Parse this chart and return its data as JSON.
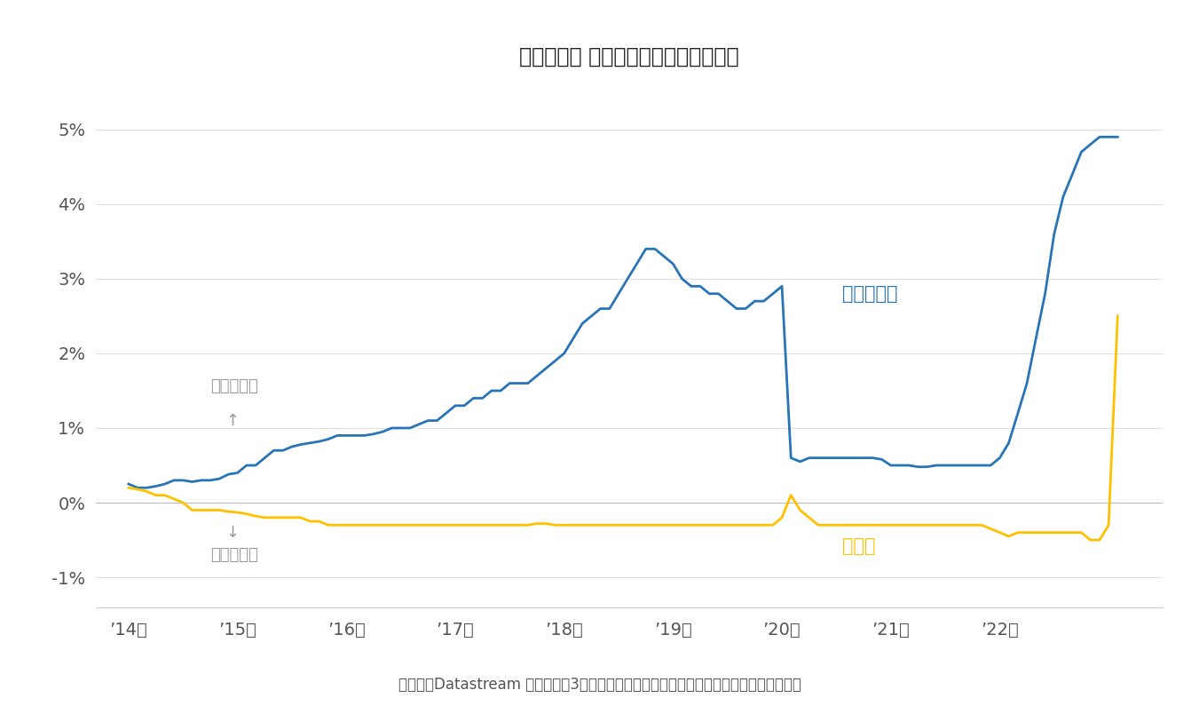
{
  "title_raw": "【図表５】 為替ヘッジのコストの推移",
  "footnote_raw": "（資料）Datastream より作成。3カ月先の為替先物より算出。なお、年率換算している。",
  "xlabel_ticks": [
    "’14年",
    "’15年",
    "’16年",
    "’17年",
    "’18年",
    "’19年",
    "’20年",
    "’21年",
    "’22年"
  ],
  "yticks": [
    -0.01,
    0.0,
    0.01,
    0.02,
    0.03,
    0.04,
    0.05
  ],
  "ytick_labels": [
    "-1%",
    "0%",
    "1%",
    "2%",
    "3%",
    "4%",
    "5%"
  ],
  "ylim": [
    -0.014,
    0.056
  ],
  "xlim_start": 2013.7,
  "xlim_end": 2023.5,
  "line_blue_color": "#2874B8",
  "line_gold_color": "#FFC000",
  "annotation_color": "#999999",
  "text_color": "#555555",
  "background_color": "#FFFFFF",
  "label_dollar": "（米）ドル",
  "label_euro": "ユーロ",
  "annotation_large": "コスト：大",
  "annotation_arrow_up": "↑",
  "annotation_small": "コスト：小",
  "annotation_arrow_down": "↓",
  "usd_x": [
    2014.0,
    2014.083,
    2014.167,
    2014.25,
    2014.333,
    2014.417,
    2014.5,
    2014.583,
    2014.667,
    2014.75,
    2014.833,
    2014.917,
    2015.0,
    2015.083,
    2015.167,
    2015.25,
    2015.333,
    2015.417,
    2015.5,
    2015.583,
    2015.667,
    2015.75,
    2015.833,
    2015.917,
    2016.0,
    2016.083,
    2016.167,
    2016.25,
    2016.333,
    2016.417,
    2016.5,
    2016.583,
    2016.667,
    2016.75,
    2016.833,
    2016.917,
    2017.0,
    2017.083,
    2017.167,
    2017.25,
    2017.333,
    2017.417,
    2017.5,
    2017.583,
    2017.667,
    2017.75,
    2017.833,
    2017.917,
    2018.0,
    2018.083,
    2018.167,
    2018.25,
    2018.333,
    2018.417,
    2018.5,
    2018.583,
    2018.667,
    2018.75,
    2018.833,
    2018.917,
    2019.0,
    2019.083,
    2019.167,
    2019.25,
    2019.333,
    2019.417,
    2019.5,
    2019.583,
    2019.667,
    2019.75,
    2019.833,
    2019.917,
    2020.0,
    2020.083,
    2020.167,
    2020.25,
    2020.333,
    2020.417,
    2020.5,
    2020.583,
    2020.667,
    2020.75,
    2020.833,
    2020.917,
    2021.0,
    2021.083,
    2021.167,
    2021.25,
    2021.333,
    2021.417,
    2021.5,
    2021.583,
    2021.667,
    2021.75,
    2021.833,
    2021.917,
    2022.0,
    2022.083,
    2022.167,
    2022.25,
    2022.333,
    2022.417,
    2022.5,
    2022.583,
    2022.667,
    2022.75,
    2022.833,
    2022.917,
    2023.0,
    2023.083
  ],
  "usd_y": [
    0.0025,
    0.002,
    0.002,
    0.0022,
    0.0025,
    0.003,
    0.003,
    0.0028,
    0.003,
    0.003,
    0.0032,
    0.0038,
    0.004,
    0.005,
    0.005,
    0.006,
    0.007,
    0.007,
    0.0075,
    0.0078,
    0.008,
    0.0082,
    0.0085,
    0.009,
    0.009,
    0.009,
    0.009,
    0.0092,
    0.0095,
    0.01,
    0.01,
    0.01,
    0.0105,
    0.011,
    0.011,
    0.012,
    0.013,
    0.013,
    0.014,
    0.014,
    0.015,
    0.015,
    0.016,
    0.016,
    0.016,
    0.017,
    0.018,
    0.019,
    0.02,
    0.022,
    0.024,
    0.025,
    0.026,
    0.026,
    0.028,
    0.03,
    0.032,
    0.034,
    0.034,
    0.033,
    0.032,
    0.03,
    0.029,
    0.029,
    0.028,
    0.028,
    0.027,
    0.026,
    0.026,
    0.027,
    0.027,
    0.028,
    0.029,
    0.006,
    0.0055,
    0.006,
    0.006,
    0.006,
    0.006,
    0.006,
    0.006,
    0.006,
    0.006,
    0.0058,
    0.005,
    0.005,
    0.005,
    0.0048,
    0.0048,
    0.005,
    0.005,
    0.005,
    0.005,
    0.005,
    0.005,
    0.005,
    0.006,
    0.008,
    0.012,
    0.016,
    0.022,
    0.028,
    0.036,
    0.041,
    0.044,
    0.047,
    0.048,
    0.049,
    0.049,
    0.049
  ],
  "eur_x": [
    2014.0,
    2014.083,
    2014.167,
    2014.25,
    2014.333,
    2014.417,
    2014.5,
    2014.583,
    2014.667,
    2014.75,
    2014.833,
    2014.917,
    2015.0,
    2015.083,
    2015.167,
    2015.25,
    2015.333,
    2015.417,
    2015.5,
    2015.583,
    2015.667,
    2015.75,
    2015.833,
    2015.917,
    2016.0,
    2016.083,
    2016.167,
    2016.25,
    2016.333,
    2016.417,
    2016.5,
    2016.583,
    2016.667,
    2016.75,
    2016.833,
    2016.917,
    2017.0,
    2017.083,
    2017.167,
    2017.25,
    2017.333,
    2017.417,
    2017.5,
    2017.583,
    2017.667,
    2017.75,
    2017.833,
    2017.917,
    2018.0,
    2018.083,
    2018.167,
    2018.25,
    2018.333,
    2018.417,
    2018.5,
    2018.583,
    2018.667,
    2018.75,
    2018.833,
    2018.917,
    2019.0,
    2019.083,
    2019.167,
    2019.25,
    2019.333,
    2019.417,
    2019.5,
    2019.583,
    2019.667,
    2019.75,
    2019.833,
    2019.917,
    2020.0,
    2020.083,
    2020.167,
    2020.25,
    2020.333,
    2020.417,
    2020.5,
    2020.583,
    2020.667,
    2020.75,
    2020.833,
    2020.917,
    2021.0,
    2021.083,
    2021.167,
    2021.25,
    2021.333,
    2021.417,
    2021.5,
    2021.583,
    2021.667,
    2021.75,
    2021.833,
    2021.917,
    2022.0,
    2022.083,
    2022.167,
    2022.25,
    2022.333,
    2022.417,
    2022.5,
    2022.583,
    2022.667,
    2022.75,
    2022.833,
    2022.917,
    2023.0,
    2023.083
  ],
  "eur_y": [
    0.002,
    0.0018,
    0.0015,
    0.001,
    0.001,
    0.0005,
    0.0,
    -0.001,
    -0.001,
    -0.001,
    -0.001,
    -0.0012,
    -0.0013,
    -0.0015,
    -0.0018,
    -0.002,
    -0.002,
    -0.002,
    -0.002,
    -0.002,
    -0.0025,
    -0.0025,
    -0.003,
    -0.003,
    -0.003,
    -0.003,
    -0.003,
    -0.003,
    -0.003,
    -0.003,
    -0.003,
    -0.003,
    -0.003,
    -0.003,
    -0.003,
    -0.003,
    -0.003,
    -0.003,
    -0.003,
    -0.003,
    -0.003,
    -0.003,
    -0.003,
    -0.003,
    -0.003,
    -0.0028,
    -0.0028,
    -0.003,
    -0.003,
    -0.003,
    -0.003,
    -0.003,
    -0.003,
    -0.003,
    -0.003,
    -0.003,
    -0.003,
    -0.003,
    -0.003,
    -0.003,
    -0.003,
    -0.003,
    -0.003,
    -0.003,
    -0.003,
    -0.003,
    -0.003,
    -0.003,
    -0.003,
    -0.003,
    -0.003,
    -0.003,
    -0.002,
    0.001,
    -0.001,
    -0.002,
    -0.003,
    -0.003,
    -0.003,
    -0.003,
    -0.003,
    -0.003,
    -0.003,
    -0.003,
    -0.003,
    -0.003,
    -0.003,
    -0.003,
    -0.003,
    -0.003,
    -0.003,
    -0.003,
    -0.003,
    -0.003,
    -0.003,
    -0.0035,
    -0.004,
    -0.0045,
    -0.004,
    -0.004,
    -0.004,
    -0.004,
    -0.004,
    -0.004,
    -0.004,
    -0.004,
    -0.005,
    -0.005,
    -0.003,
    0.025
  ]
}
